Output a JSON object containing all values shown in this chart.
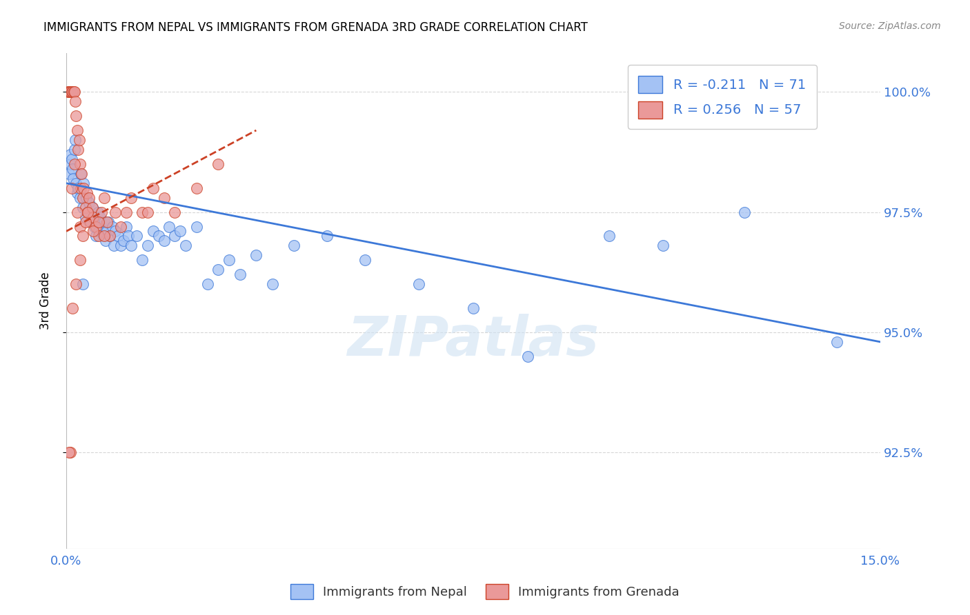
{
  "title": "IMMIGRANTS FROM NEPAL VS IMMIGRANTS FROM GRENADA 3RD GRADE CORRELATION CHART",
  "source": "Source: ZipAtlas.com",
  "ylabel": "3rd Grade",
  "xmin": 0.0,
  "xmax": 15.0,
  "ymin": 90.5,
  "ymax": 100.8,
  "nepal_R": "-0.211",
  "nepal_N": "71",
  "grenada_R": "0.256",
  "grenada_N": "57",
  "nepal_color": "#a4c2f4",
  "grenada_color": "#ea9999",
  "nepal_line_color": "#3c78d8",
  "grenada_line_color": "#cc4125",
  "legend_label_nepal": "Immigrants from Nepal",
  "legend_label_grenada": "Immigrants from Grenada",
  "watermark": "ZIPatlas",
  "nepal_line_x0": 0.0,
  "nepal_line_x1": 15.0,
  "nepal_line_y0": 98.1,
  "nepal_line_y1": 94.8,
  "grenada_line_x0": 0.0,
  "grenada_line_x1": 3.5,
  "grenada_line_y0": 97.1,
  "grenada_line_y1": 99.2,
  "nepal_x": [
    0.05,
    0.07,
    0.08,
    0.1,
    0.12,
    0.13,
    0.15,
    0.16,
    0.18,
    0.2,
    0.22,
    0.25,
    0.27,
    0.3,
    0.32,
    0.35,
    0.37,
    0.4,
    0.42,
    0.45,
    0.48,
    0.5,
    0.52,
    0.55,
    0.58,
    0.6,
    0.62,
    0.65,
    0.68,
    0.7,
    0.72,
    0.75,
    0.78,
    0.8,
    0.85,
    0.88,
    0.9,
    0.95,
    1.0,
    1.05,
    1.1,
    1.15,
    1.2,
    1.3,
    1.4,
    1.5,
    1.6,
    1.7,
    1.8,
    1.9,
    2.0,
    2.1,
    2.2,
    2.4,
    2.6,
    2.8,
    3.0,
    3.2,
    3.5,
    3.8,
    4.2,
    4.8,
    5.5,
    6.5,
    7.5,
    8.5,
    10.0,
    11.0,
    12.5,
    14.2,
    0.3
  ],
  "nepal_y": [
    98.3,
    98.5,
    98.7,
    98.6,
    98.4,
    98.2,
    98.8,
    99.0,
    98.1,
    97.9,
    98.0,
    97.8,
    98.3,
    97.6,
    98.1,
    97.4,
    97.8,
    97.5,
    97.7,
    97.3,
    97.6,
    97.4,
    97.2,
    97.0,
    97.5,
    97.1,
    97.4,
    97.2,
    97.0,
    97.3,
    96.9,
    97.1,
    97.3,
    97.0,
    97.2,
    96.8,
    97.1,
    97.0,
    96.8,
    96.9,
    97.2,
    97.0,
    96.8,
    97.0,
    96.5,
    96.8,
    97.1,
    97.0,
    96.9,
    97.2,
    97.0,
    97.1,
    96.8,
    97.2,
    96.0,
    96.3,
    96.5,
    96.2,
    96.6,
    96.0,
    96.8,
    97.0,
    96.5,
    96.0,
    95.5,
    94.5,
    97.0,
    96.8,
    97.5,
    94.8,
    96.0
  ],
  "grenada_x": [
    0.03,
    0.05,
    0.06,
    0.08,
    0.1,
    0.12,
    0.14,
    0.15,
    0.17,
    0.18,
    0.2,
    0.22,
    0.24,
    0.25,
    0.27,
    0.28,
    0.3,
    0.32,
    0.35,
    0.38,
    0.4,
    0.42,
    0.45,
    0.48,
    0.5,
    0.55,
    0.6,
    0.65,
    0.7,
    0.75,
    0.8,
    0.9,
    1.0,
    1.1,
    1.2,
    1.4,
    1.6,
    1.8,
    2.0,
    2.4,
    2.8,
    0.1,
    0.15,
    0.2,
    0.25,
    0.3,
    0.35,
    0.4,
    0.5,
    0.6,
    0.7,
    0.08,
    0.05,
    0.12,
    0.18,
    0.25,
    1.5
  ],
  "grenada_y": [
    100.0,
    100.0,
    100.0,
    100.0,
    100.0,
    100.0,
    100.0,
    100.0,
    99.8,
    99.5,
    99.2,
    98.8,
    99.0,
    98.5,
    98.0,
    98.3,
    97.8,
    98.0,
    97.6,
    97.9,
    97.5,
    97.8,
    97.3,
    97.6,
    97.4,
    97.2,
    97.0,
    97.5,
    97.8,
    97.3,
    97.0,
    97.5,
    97.2,
    97.5,
    97.8,
    97.5,
    98.0,
    97.8,
    97.5,
    98.0,
    98.5,
    98.0,
    98.5,
    97.5,
    97.2,
    97.0,
    97.3,
    97.5,
    97.1,
    97.3,
    97.0,
    92.5,
    92.5,
    95.5,
    96.0,
    96.5,
    97.5
  ]
}
